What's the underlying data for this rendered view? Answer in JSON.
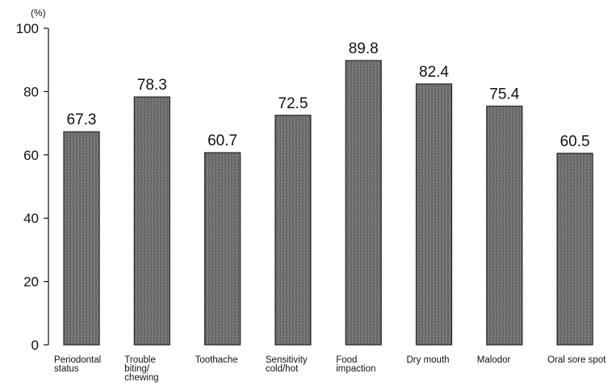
{
  "chart_data": {
    "type": "bar",
    "categories": [
      "Periodontal status",
      "Trouble biting/ chewing",
      "Toothache",
      "Sensitivity cold/hot",
      "Food impaction",
      "Dry mouth",
      "Malodor",
      "Oral sore spot"
    ],
    "category_lines": [
      [
        "Periodontal",
        "status"
      ],
      [
        "Trouble",
        "biting/",
        "chewing"
      ],
      [
        "Toothache"
      ],
      [
        "Sensitivity",
        "cold/hot"
      ],
      [
        "Food",
        "impaction"
      ],
      [
        "Dry mouth"
      ],
      [
        "Malodor"
      ],
      [
        "Oral sore spot"
      ]
    ],
    "values": [
      67.3,
      78.3,
      60.7,
      72.5,
      89.8,
      82.4,
      75.4,
      60.5
    ],
    "value_labels": [
      "67.3",
      "78.3",
      "60.7",
      "72.5",
      "89.8",
      "82.4",
      "75.4",
      "60.5"
    ],
    "title": "",
    "xlabel": "",
    "ylabel": "",
    "y_unit": "(%)",
    "ylim": [
      0,
      100
    ],
    "yticks": [
      0,
      20,
      40,
      60,
      80,
      100
    ],
    "grid": false,
    "legend": "none",
    "bar_color": "#7a7a7a"
  }
}
